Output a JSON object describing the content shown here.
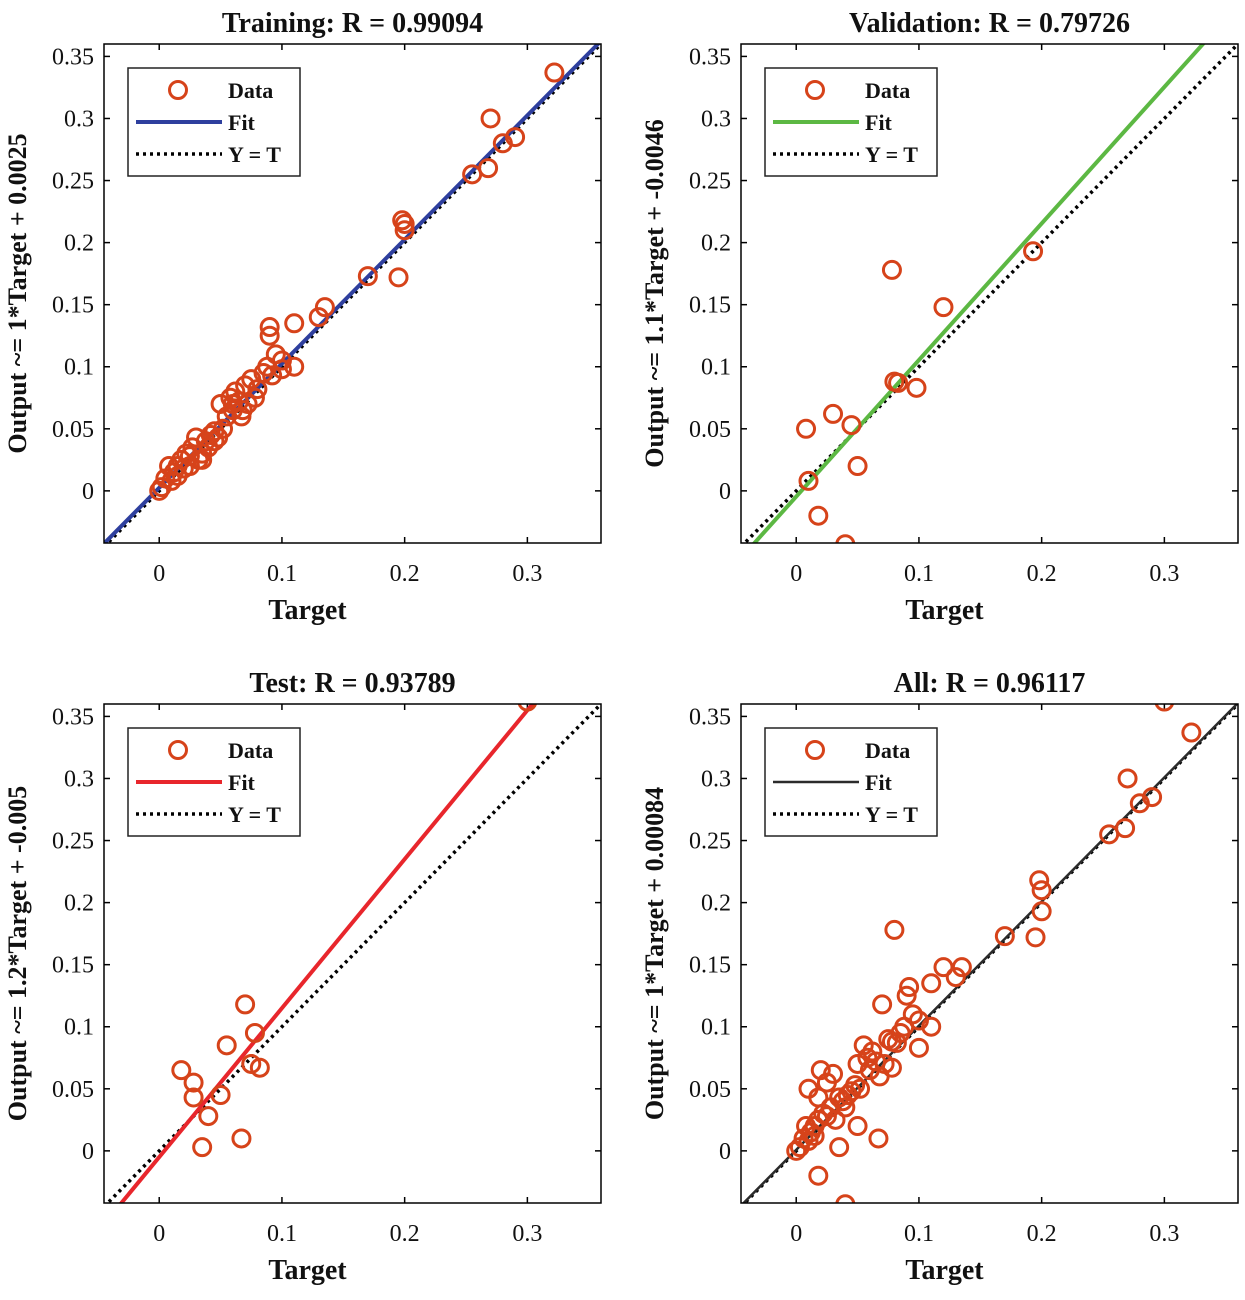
{
  "figure": {
    "marker_color": "#d6431a",
    "identity_color": "#000000"
  },
  "chart_data": [
    {
      "type": "scatter",
      "title": "Training: R = 0.99094",
      "xlabel": "Target",
      "ylabel": "Output ~= 1*Target + 0.0025",
      "xlim": [
        -0.045,
        0.36
      ],
      "ylim": [
        -0.042,
        0.36
      ],
      "xticks": [
        "0",
        "0.1",
        "0.2",
        "0.3"
      ],
      "yticks": [
        "0",
        "0.05",
        "0.1",
        "0.15",
        "0.2",
        "0.25",
        "0.3",
        "0.35"
      ],
      "legend": {
        "position": "top-left",
        "entries": [
          "Data",
          "Fit",
          "Y = T"
        ]
      },
      "fit": {
        "slope": 1.0,
        "intercept": 0.0025,
        "color": "#2e3f9e"
      },
      "x": [
        0,
        0.002,
        0.005,
        0.008,
        0.01,
        0.012,
        0.015,
        0.018,
        0.02,
        0.022,
        0.025,
        0.027,
        0.03,
        0.032,
        0.035,
        0.038,
        0.04,
        0.042,
        0.045,
        0.048,
        0.05,
        0.052,
        0.055,
        0.058,
        0.06,
        0.062,
        0.065,
        0.067,
        0.07,
        0.072,
        0.075,
        0.078,
        0.08,
        0.085,
        0.088,
        0.09,
        0.09,
        0.092,
        0.095,
        0.1,
        0.1,
        0.11,
        0.11,
        0.13,
        0.135,
        0.17,
        0.195,
        0.198,
        0.2,
        0.2,
        0.255,
        0.268,
        0.27,
        0.28,
        0.29,
        0.322,
        0.025,
        0.015,
        0.035,
        0.06,
        0.068,
        0.045
      ],
      "y": [
        0,
        0.003,
        0.01,
        0.02,
        0.008,
        0.015,
        0.02,
        0.025,
        0.018,
        0.03,
        0.028,
        0.035,
        0.043,
        0.025,
        0.03,
        0.04,
        0.035,
        0.045,
        0.048,
        0.043,
        0.07,
        0.05,
        0.06,
        0.075,
        0.065,
        0.08,
        0.072,
        0.06,
        0.085,
        0.07,
        0.09,
        0.075,
        0.082,
        0.095,
        0.1,
        0.125,
        0.132,
        0.093,
        0.11,
        0.105,
        0.098,
        0.135,
        0.1,
        0.14,
        0.148,
        0.173,
        0.172,
        0.218,
        0.21,
        0.215,
        0.255,
        0.26,
        0.3,
        0.28,
        0.285,
        0.337,
        0.02,
        0.012,
        0.025,
        0.07,
        0.065,
        0.04
      ]
    },
    {
      "type": "scatter",
      "title": "Validation: R = 0.79726",
      "xlabel": "Target",
      "ylabel": "Output ~= 1.1*Target + -0.0046",
      "xlim": [
        -0.045,
        0.36
      ],
      "ylim": [
        -0.042,
        0.36
      ],
      "xticks": [
        "0",
        "0.1",
        "0.2",
        "0.3"
      ],
      "yticks": [
        "0",
        "0.05",
        "0.1",
        "0.15",
        "0.2",
        "0.25",
        "0.3",
        "0.35"
      ],
      "legend": {
        "position": "top-left",
        "entries": [
          "Data",
          "Fit",
          "Y = T"
        ]
      },
      "fit": {
        "slope": 1.1,
        "intercept": -0.0046,
        "color": "#5cb843"
      },
      "x": [
        0.008,
        0.01,
        0.018,
        0.03,
        0.04,
        0.045,
        0.05,
        0.078,
        0.08,
        0.083,
        0.098,
        0.12,
        0.193
      ],
      "y": [
        0.05,
        0.008,
        -0.02,
        0.062,
        -0.043,
        0.053,
        0.02,
        0.178,
        0.088,
        0.087,
        0.083,
        0.148,
        0.193
      ]
    },
    {
      "type": "scatter",
      "title": "Test: R = 0.93789",
      "xlabel": "Target",
      "ylabel": "Output ~= 1.2*Target + -0.005",
      "xlim": [
        -0.045,
        0.36
      ],
      "ylim": [
        -0.042,
        0.36
      ],
      "xticks": [
        "0",
        "0.1",
        "0.2",
        "0.3"
      ],
      "yticks": [
        "0",
        "0.05",
        "0.1",
        "0.15",
        "0.2",
        "0.25",
        "0.3",
        "0.35"
      ],
      "legend": {
        "position": "top-left",
        "entries": [
          "Data",
          "Fit",
          "Y = T"
        ]
      },
      "fit": {
        "slope": 1.2,
        "intercept": -0.005,
        "color": "#e8262c"
      },
      "x": [
        0.018,
        0.028,
        0.028,
        0.035,
        0.04,
        0.05,
        0.055,
        0.067,
        0.07,
        0.075,
        0.078,
        0.082,
        0.3
      ],
      "y": [
        0.065,
        0.055,
        0.043,
        0.003,
        0.028,
        0.045,
        0.085,
        0.01,
        0.118,
        0.07,
        0.095,
        0.067,
        0.362
      ]
    },
    {
      "type": "scatter",
      "title": "All: R = 0.96117",
      "xlabel": "Target",
      "ylabel": "Output ~= 1*Target + 0.00084",
      "xlim": [
        -0.045,
        0.36
      ],
      "ylim": [
        -0.042,
        0.36
      ],
      "xticks": [
        "0",
        "0.1",
        "0.2",
        "0.3"
      ],
      "yticks": [
        "0",
        "0.05",
        "0.1",
        "0.15",
        "0.2",
        "0.25",
        "0.3",
        "0.35"
      ],
      "legend": {
        "position": "top-left",
        "entries": [
          "Data",
          "Fit",
          "Y = T"
        ]
      },
      "fit": {
        "slope": 1.0,
        "intercept": 0.00084,
        "color": "#2b2b2b"
      },
      "x": [
        0,
        0.003,
        0.006,
        0.008,
        0.01,
        0.012,
        0.015,
        0.018,
        0.02,
        0.022,
        0.025,
        0.028,
        0.03,
        0.032,
        0.035,
        0.038,
        0.04,
        0.042,
        0.045,
        0.048,
        0.05,
        0.052,
        0.055,
        0.058,
        0.06,
        0.062,
        0.065,
        0.068,
        0.07,
        0.072,
        0.075,
        0.078,
        0.08,
        0.082,
        0.085,
        0.088,
        0.09,
        0.092,
        0.095,
        0.1,
        0.1,
        0.11,
        0.11,
        0.12,
        0.13,
        0.135,
        0.17,
        0.195,
        0.198,
        0.2,
        0.2,
        0.255,
        0.268,
        0.27,
        0.28,
        0.29,
        0.3,
        0.322,
        0.01,
        0.018,
        0.04,
        0.05,
        0.078,
        0.018,
        0.035,
        0.067,
        0.015,
        0.025
      ],
      "y": [
        0,
        0.003,
        0.01,
        0.02,
        0.05,
        0.015,
        0.02,
        0.025,
        0.065,
        0.03,
        0.055,
        0.035,
        0.062,
        0.025,
        0.043,
        0.04,
        0.035,
        0.045,
        0.048,
        0.053,
        0.07,
        0.05,
        0.085,
        0.075,
        0.065,
        0.08,
        0.072,
        0.06,
        0.118,
        0.07,
        0.09,
        0.088,
        0.178,
        0.087,
        0.095,
        0.1,
        0.125,
        0.132,
        0.11,
        0.105,
        0.083,
        0.135,
        0.1,
        0.148,
        0.14,
        0.148,
        0.173,
        0.172,
        0.218,
        0.21,
        0.193,
        0.255,
        0.26,
        0.3,
        0.28,
        0.285,
        0.362,
        0.337,
        0.008,
        -0.02,
        -0.043,
        0.02,
        0.067,
        0.043,
        0.003,
        0.01,
        0.012,
        0.028
      ]
    }
  ]
}
